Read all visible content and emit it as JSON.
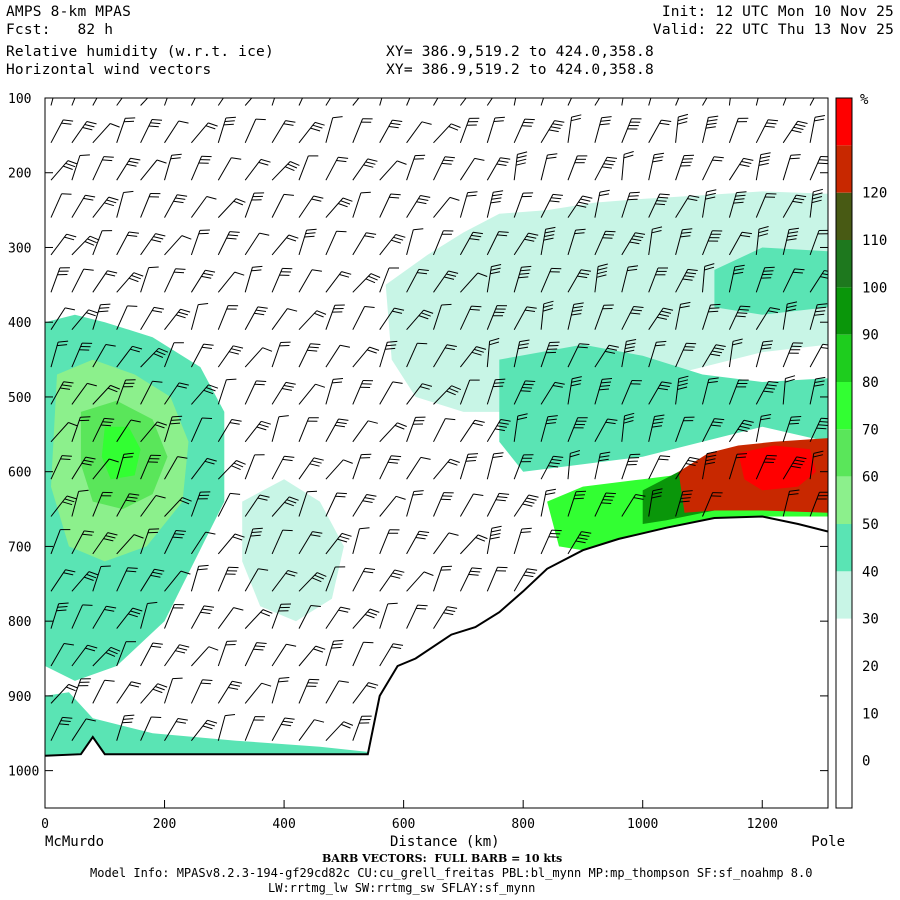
{
  "header": {
    "model": "AMPS 8-km MPAS",
    "fcst": "Fcst:   82 h",
    "field1": "Relative humidity (w.r.t. ice)",
    "field2": "Horizontal wind vectors",
    "init": "Init: 12 UTC Mon 10 Nov 25",
    "valid": "Valid: 22 UTC Thu 13 Nov 25",
    "xy1": "XY= 386.9,519.2 to 424.0,358.8",
    "xy2": "XY= 386.9,519.2 to 424.0,358.8"
  },
  "footer": {
    "barb_note": "BARB VECTORS:  FULL BARB = 10 kts",
    "model_info": "Model Info: MPASv8.2.3-194-gf29cd82c CU:cu_grell_freitas PBL:bl_mynn MP:mp_thompson SF:sf_noahmp 8.0",
    "model_info2": "LW:rrtmg_lw SW:rrtmg_sw SFLAY:sf_mynn"
  },
  "chart_data": {
    "type": "heatmap",
    "xlabel": "Distance (km)",
    "x_start_label": "McMurdo",
    "x_end_label": "Pole",
    "xlim": [
      0,
      1310
    ],
    "ylim": [
      1050,
      100
    ],
    "x_ticks": [
      "0",
      "200",
      "400",
      "600",
      "800",
      "1000",
      "1200"
    ],
    "y_ticks": [
      "100",
      "200",
      "300",
      "400",
      "500",
      "600",
      "700",
      "800",
      "900",
      "1000"
    ],
    "colorbar": {
      "unit": "%",
      "ticks": [
        "0",
        "10",
        "20",
        "30",
        "40",
        "50",
        "60",
        "70",
        "80",
        "90",
        "100",
        "110",
        "120"
      ],
      "bins": [
        {
          "range": [
            -10,
            30
          ],
          "color": "#ffffff"
        },
        {
          "range": [
            30,
            40
          ],
          "color": "#c8f5e6"
        },
        {
          "range": [
            40,
            50
          ],
          "color": "#5ae4b4"
        },
        {
          "range": [
            50,
            60
          ],
          "color": "#8cf08c"
        },
        {
          "range": [
            60,
            70
          ],
          "color": "#5ae65a"
        },
        {
          "range": [
            70,
            80
          ],
          "color": "#32ff32"
        },
        {
          "range": [
            80,
            90
          ],
          "color": "#1ecd1e"
        },
        {
          "range": [
            90,
            100
          ],
          "color": "#0a960a"
        },
        {
          "range": [
            100,
            110
          ],
          "color": "#1e781e"
        },
        {
          "range": [
            110,
            120
          ],
          "color": "#485a14"
        },
        {
          "range": [
            120,
            130
          ],
          "color": "#c82800"
        },
        {
          "range": [
            130,
            140
          ],
          "color": "#ff0000"
        }
      ]
    },
    "terrain_profile": [
      [
        0,
        980
      ],
      [
        60,
        978
      ],
      [
        80,
        955
      ],
      [
        100,
        978
      ],
      [
        200,
        978
      ],
      [
        320,
        978
      ],
      [
        440,
        978
      ],
      [
        540,
        978
      ],
      [
        560,
        900
      ],
      [
        590,
        860
      ],
      [
        620,
        850
      ],
      [
        680,
        818
      ],
      [
        720,
        808
      ],
      [
        760,
        788
      ],
      [
        800,
        760
      ],
      [
        840,
        730
      ],
      [
        900,
        705
      ],
      [
        960,
        690
      ],
      [
        1040,
        675
      ],
      [
        1120,
        662
      ],
      [
        1200,
        660
      ],
      [
        1260,
        670
      ],
      [
        1310,
        680
      ]
    ],
    "rh_regions": [
      {
        "name": "upper-rh-layer",
        "value": 35,
        "polygon": [
          [
            570,
            350
          ],
          [
            640,
            310
          ],
          [
            700,
            280
          ],
          [
            760,
            255
          ],
          [
            840,
            250
          ],
          [
            920,
            240
          ],
          [
            1000,
            235
          ],
          [
            1100,
            230
          ],
          [
            1200,
            225
          ],
          [
            1310,
            228
          ],
          [
            1310,
            430
          ],
          [
            1200,
            440
          ],
          [
            1100,
            460
          ],
          [
            1000,
            480
          ],
          [
            900,
            500
          ],
          [
            800,
            520
          ],
          [
            700,
            520
          ],
          [
            620,
            500
          ],
          [
            580,
            450
          ]
        ]
      },
      {
        "name": "upper-rh-core",
        "value": 45,
        "polygon": [
          [
            1120,
            330
          ],
          [
            1200,
            300
          ],
          [
            1310,
            305
          ],
          [
            1310,
            380
          ],
          [
            1200,
            390
          ],
          [
            1120,
            380
          ]
        ]
      },
      {
        "name": "mid-layer-sat",
        "value": 45,
        "polygon": [
          [
            760,
            450
          ],
          [
            900,
            430
          ],
          [
            1000,
            445
          ],
          [
            1100,
            470
          ],
          [
            1200,
            480
          ],
          [
            1310,
            475
          ],
          [
            1310,
            560
          ],
          [
            1200,
            540
          ],
          [
            1100,
            560
          ],
          [
            1000,
            580
          ],
          [
            900,
            590
          ],
          [
            800,
            600
          ],
          [
            760,
            560
          ]
        ]
      },
      {
        "name": "western-cloud",
        "value": 40,
        "polygon": [
          [
            0,
            400
          ],
          [
            50,
            390
          ],
          [
            100,
            400
          ],
          [
            180,
            420
          ],
          [
            260,
            460
          ],
          [
            300,
            520
          ],
          [
            300,
            640
          ],
          [
            250,
            720
          ],
          [
            200,
            800
          ],
          [
            120,
            860
          ],
          [
            50,
            880
          ],
          [
            0,
            860
          ]
        ]
      },
      {
        "name": "western-cloud-mid",
        "value": 55,
        "polygon": [
          [
            20,
            470
          ],
          [
            80,
            450
          ],
          [
            150,
            470
          ],
          [
            210,
            500
          ],
          [
            240,
            560
          ],
          [
            230,
            640
          ],
          [
            170,
            700
          ],
          [
            100,
            720
          ],
          [
            40,
            700
          ],
          [
            10,
            620
          ]
        ]
      },
      {
        "name": "western-cloud-core",
        "value": 65,
        "polygon": [
          [
            60,
            520
          ],
          [
            120,
            505
          ],
          [
            180,
            530
          ],
          [
            205,
            580
          ],
          [
            180,
            630
          ],
          [
            130,
            650
          ],
          [
            80,
            640
          ],
          [
            60,
            590
          ]
        ]
      },
      {
        "name": "western-cloud-max",
        "value": 75,
        "polygon": [
          [
            100,
            540
          ],
          [
            140,
            540
          ],
          [
            160,
            570
          ],
          [
            150,
            605
          ],
          [
            110,
            610
          ],
          [
            95,
            580
          ]
        ]
      },
      {
        "name": "lower-rh-band",
        "value": 35,
        "polygon": [
          [
            330,
            640
          ],
          [
            400,
            610
          ],
          [
            460,
            640
          ],
          [
            500,
            700
          ],
          [
            480,
            770
          ],
          [
            420,
            800
          ],
          [
            360,
            780
          ],
          [
            330,
            720
          ]
        ]
      },
      {
        "name": "near-surface-west",
        "value": 45,
        "polygon": [
          [
            0,
            900
          ],
          [
            40,
            895
          ],
          [
            80,
            930
          ],
          [
            180,
            950
          ],
          [
            320,
            960
          ],
          [
            460,
            968
          ],
          [
            540,
            975
          ],
          [
            540,
            980
          ],
          [
            0,
            980
          ]
        ]
      },
      {
        "name": "boundary-layer",
        "value": 75,
        "polygon": [
          [
            840,
            640
          ],
          [
            900,
            620
          ],
          [
            1000,
            610
          ],
          [
            1100,
            600
          ],
          [
            1200,
            590
          ],
          [
            1310,
            585
          ],
          [
            1310,
            660
          ],
          [
            1200,
            660
          ],
          [
            1120,
            662
          ],
          [
            1040,
            675
          ],
          [
            960,
            690
          ],
          [
            900,
            705
          ],
          [
            860,
            700
          ]
        ]
      },
      {
        "name": "boundary-layer-core",
        "value": 95,
        "polygon": [
          [
            1000,
            625
          ],
          [
            1060,
            600
          ],
          [
            1140,
            585
          ],
          [
            1200,
            575
          ],
          [
            1310,
            570
          ],
          [
            1310,
            640
          ],
          [
            1200,
            650
          ],
          [
            1120,
            652
          ],
          [
            1040,
            665
          ],
          [
            1000,
            670
          ]
        ]
      },
      {
        "name": "boundary-layer-sat",
        "value": 125,
        "polygon": [
          [
            1060,
            600
          ],
          [
            1110,
            575
          ],
          [
            1160,
            565
          ],
          [
            1220,
            560
          ],
          [
            1310,
            555
          ],
          [
            1310,
            655
          ],
          [
            1200,
            652
          ],
          [
            1120,
            652
          ],
          [
            1070,
            655
          ]
        ]
      },
      {
        "name": "boundary-layer-peak",
        "value": 135,
        "polygon": [
          [
            1160,
            575
          ],
          [
            1220,
            565
          ],
          [
            1280,
            570
          ],
          [
            1290,
            600
          ],
          [
            1260,
            620
          ],
          [
            1200,
            625
          ],
          [
            1170,
            610
          ]
        ]
      }
    ],
    "wind_barbs": {
      "x_columns": [
        10,
        45,
        80,
        120,
        160,
        200,
        245,
        290,
        335,
        380,
        425,
        470,
        515,
        560,
        605,
        650,
        695,
        740,
        785,
        830,
        875,
        920,
        965,
        1010,
        1055,
        1100,
        1145,
        1190,
        1235,
        1280
      ],
      "levels": [
        110,
        160,
        210,
        260,
        310,
        360,
        410,
        460,
        510,
        560,
        610,
        660,
        710,
        760,
        810,
        860,
        910,
        960
      ],
      "note": "FULL BARB = 10 kts"
    }
  }
}
